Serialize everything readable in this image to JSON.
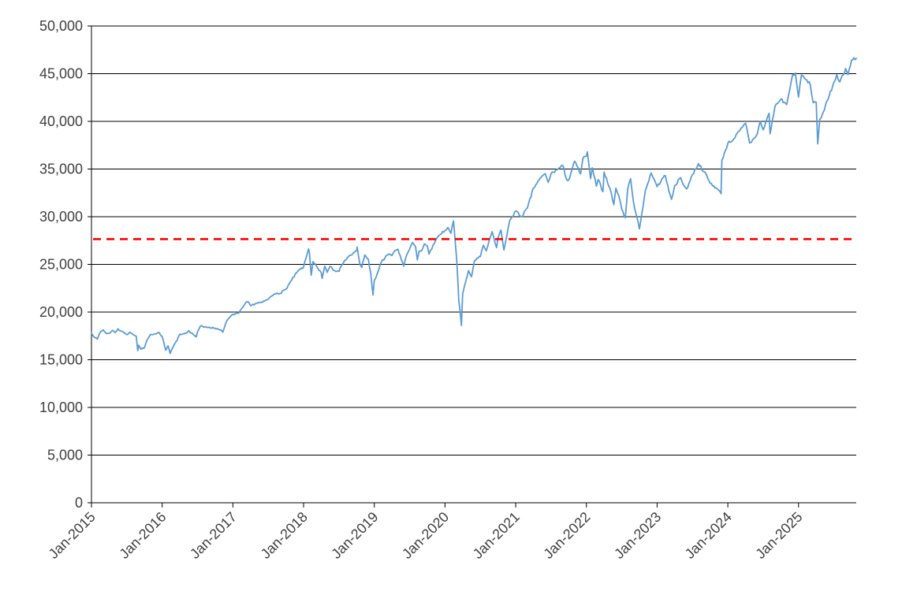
{
  "chart_data": {
    "type": "line",
    "title": "",
    "xlabel": "",
    "ylabel": "",
    "legend": "none",
    "grid": "horizontal",
    "x_unit": "months since Jan-2015",
    "x_range": [
      0,
      129.8
    ],
    "y_range": [
      0,
      50000
    ],
    "y_ticks": [
      {
        "v": 0,
        "label": "0"
      },
      {
        "v": 5000,
        "label": "5,000"
      },
      {
        "v": 10000,
        "label": "10,000"
      },
      {
        "v": 15000,
        "label": "15,000"
      },
      {
        "v": 20000,
        "label": "20,000"
      },
      {
        "v": 25000,
        "label": "25,000"
      },
      {
        "v": 30000,
        "label": "30,000"
      },
      {
        "v": 35000,
        "label": "35,000"
      },
      {
        "v": 40000,
        "label": "40,000"
      },
      {
        "v": 45000,
        "label": "45,000"
      },
      {
        "v": 50000,
        "label": "50,000"
      }
    ],
    "x_ticks": [
      {
        "t": 0,
        "label": "Jan-2015"
      },
      {
        "t": 12,
        "label": "Jan-2016"
      },
      {
        "t": 24,
        "label": "Jan-2017"
      },
      {
        "t": 36,
        "label": "Jan-2018"
      },
      {
        "t": 48,
        "label": "Jan-2019"
      },
      {
        "t": 60,
        "label": "Jan-2020"
      },
      {
        "t": 72,
        "label": "Jan-2021"
      },
      {
        "t": 84,
        "label": "Jan-2022"
      },
      {
        "t": 96,
        "label": "Jan-2023"
      },
      {
        "t": 108,
        "label": "Jan-2024"
      },
      {
        "t": 120,
        "label": "Jan-2025"
      }
    ],
    "reference_line": {
      "value": 27650,
      "color": "#FF0000",
      "style": "dashed"
    },
    "series": [
      {
        "name": "main-series",
        "color": "#5B9BD5",
        "points": [
          [
            0,
            17823
          ],
          [
            0.6,
            17300
          ],
          [
            1,
            17165
          ],
          [
            1.5,
            17900
          ],
          [
            2,
            18133
          ],
          [
            2.5,
            17750
          ],
          [
            3,
            17776
          ],
          [
            3.6,
            18080
          ],
          [
            4,
            17841
          ],
          [
            4.5,
            18250
          ],
          [
            5,
            18011
          ],
          [
            5.5,
            17850
          ],
          [
            6,
            17620
          ],
          [
            6.5,
            17900
          ],
          [
            7,
            17690
          ],
          [
            7.6,
            17450
          ],
          [
            7.85,
            15950
          ],
          [
            8,
            16528
          ],
          [
            8.4,
            16100
          ],
          [
            9,
            16285
          ],
          [
            9.5,
            17150
          ],
          [
            10,
            17664
          ],
          [
            11,
            17720
          ],
          [
            11.5,
            17850
          ],
          [
            12,
            17425
          ],
          [
            12.6,
            15988
          ],
          [
            13,
            16466
          ],
          [
            13.35,
            15660
          ],
          [
            14,
            16517
          ],
          [
            14.5,
            17000
          ],
          [
            15,
            17685
          ],
          [
            16,
            17774
          ],
          [
            16.5,
            18050
          ],
          [
            17,
            17787
          ],
          [
            17.8,
            17400
          ],
          [
            18,
            17930
          ],
          [
            18.5,
            18550
          ],
          [
            19,
            18432
          ],
          [
            20,
            18401
          ],
          [
            21,
            18308
          ],
          [
            22,
            18142
          ],
          [
            22.3,
            17888
          ],
          [
            23,
            19124
          ],
          [
            24,
            19763
          ],
          [
            25,
            19864
          ],
          [
            25.8,
            20600
          ],
          [
            26,
            20812
          ],
          [
            26.5,
            21100
          ],
          [
            27,
            20663
          ],
          [
            28,
            20941
          ],
          [
            29,
            21009
          ],
          [
            30,
            21350
          ],
          [
            31,
            21891
          ],
          [
            31.5,
            22000
          ],
          [
            32,
            21948
          ],
          [
            33,
            22405
          ],
          [
            34,
            23377
          ],
          [
            35,
            24272
          ],
          [
            36,
            24719
          ],
          [
            36.85,
            26616
          ],
          [
            37,
            26149
          ],
          [
            37.3,
            23860
          ],
          [
            37.6,
            25300
          ],
          [
            38,
            25029
          ],
          [
            38.4,
            24600
          ],
          [
            39,
            24103
          ],
          [
            39.15,
            23533
          ],
          [
            39.6,
            24800
          ],
          [
            40,
            24163
          ],
          [
            40.5,
            24800
          ],
          [
            41,
            24416
          ],
          [
            41.5,
            24250
          ],
          [
            42,
            24271
          ],
          [
            42.5,
            24920
          ],
          [
            43,
            25415
          ],
          [
            44,
            25965
          ],
          [
            45,
            26458
          ],
          [
            45.1,
            26828
          ],
          [
            45.55,
            25050
          ],
          [
            45.9,
            24688
          ],
          [
            46,
            25116
          ],
          [
            46.4,
            25990
          ],
          [
            47,
            25538
          ],
          [
            47.4,
            24100
          ],
          [
            47.78,
            21792
          ],
          [
            48,
            23327
          ],
          [
            48.5,
            24000
          ],
          [
            49,
            25000
          ],
          [
            50,
            25916
          ],
          [
            50.5,
            26100
          ],
          [
            51,
            25929
          ],
          [
            51.5,
            26450
          ],
          [
            52,
            26593
          ],
          [
            52.6,
            25470
          ],
          [
            53,
            24815
          ],
          [
            53.5,
            26000
          ],
          [
            54,
            26600
          ],
          [
            54.5,
            27300
          ],
          [
            55,
            26864
          ],
          [
            55.3,
            25479
          ],
          [
            55.6,
            26380
          ],
          [
            56,
            26403
          ],
          [
            56.5,
            27150
          ],
          [
            57,
            26917
          ],
          [
            57.3,
            26080
          ],
          [
            58,
            27046
          ],
          [
            59,
            28051
          ],
          [
            60,
            28538
          ],
          [
            60.5,
            28868
          ],
          [
            61,
            28256
          ],
          [
            61.45,
            29551
          ],
          [
            62,
            25409
          ],
          [
            62.35,
            21200
          ],
          [
            62.55,
            20188
          ],
          [
            62.78,
            18592
          ],
          [
            63,
            21917
          ],
          [
            63.3,
            22680
          ],
          [
            64,
            24346
          ],
          [
            64.5,
            23700
          ],
          [
            65,
            25383
          ],
          [
            66,
            25813
          ],
          [
            66.5,
            27000
          ],
          [
            67,
            26428
          ],
          [
            68,
            28430
          ],
          [
            68.75,
            26763
          ],
          [
            69,
            27782
          ],
          [
            69.5,
            28600
          ],
          [
            70,
            26502
          ],
          [
            70.5,
            28000
          ],
          [
            71,
            29639
          ],
          [
            72,
            30606
          ],
          [
            73,
            29983
          ],
          [
            74,
            30932
          ],
          [
            75,
            32982
          ],
          [
            76,
            33875
          ],
          [
            77,
            34529
          ],
          [
            77.5,
            33600
          ],
          [
            78,
            34503
          ],
          [
            79,
            34935
          ],
          [
            80,
            35361
          ],
          [
            80.6,
            33970
          ],
          [
            81,
            33844
          ],
          [
            82,
            35820
          ],
          [
            83,
            34484
          ],
          [
            83.4,
            36100
          ],
          [
            84,
            36338
          ],
          [
            84.15,
            36800
          ],
          [
            84.7,
            34000
          ],
          [
            85,
            35132
          ],
          [
            85.7,
            33200
          ],
          [
            86,
            33893
          ],
          [
            86.8,
            32632
          ],
          [
            87,
            34678
          ],
          [
            88,
            32977
          ],
          [
            88.65,
            31253
          ],
          [
            89,
            32990
          ],
          [
            89.5,
            32200
          ],
          [
            90,
            30775
          ],
          [
            90.6,
            29889
          ],
          [
            91,
            32845
          ],
          [
            91.5,
            33980
          ],
          [
            92,
            31510
          ],
          [
            93,
            28726
          ],
          [
            94,
            32733
          ],
          [
            95,
            34590
          ],
          [
            95.5,
            33900
          ],
          [
            96,
            33147
          ],
          [
            97,
            34086
          ],
          [
            97.4,
            34300
          ],
          [
            98,
            32657
          ],
          [
            98.45,
            31819
          ],
          [
            99,
            33274
          ],
          [
            100,
            34098
          ],
          [
            100.5,
            33300
          ],
          [
            101,
            32908
          ],
          [
            102,
            34408
          ],
          [
            103,
            35560
          ],
          [
            104,
            34722
          ],
          [
            105,
            33508
          ],
          [
            106,
            33053
          ],
          [
            106.85,
            32418
          ],
          [
            107,
            35951
          ],
          [
            108,
            37690
          ],
          [
            109,
            38150
          ],
          [
            110,
            38996
          ],
          [
            110.5,
            39400
          ],
          [
            111,
            39807
          ],
          [
            111.7,
            37735
          ],
          [
            112,
            37816
          ],
          [
            113,
            38686
          ],
          [
            113.5,
            40000
          ],
          [
            114,
            39119
          ],
          [
            115,
            40843
          ],
          [
            115.18,
            38703
          ],
          [
            116,
            41563
          ],
          [
            117,
            42330
          ],
          [
            118,
            41763
          ],
          [
            118.5,
            43300
          ],
          [
            119,
            44911
          ],
          [
            119.45,
            45074
          ],
          [
            120,
            42544
          ],
          [
            120.5,
            44850
          ],
          [
            121,
            44545
          ],
          [
            122,
            43841
          ],
          [
            122.5,
            41950
          ],
          [
            123,
            42002
          ],
          [
            123.25,
            37646
          ],
          [
            123.6,
            40200
          ],
          [
            124,
            40669
          ],
          [
            125,
            42270
          ],
          [
            126,
            44095
          ],
          [
            126.5,
            44900
          ],
          [
            127,
            44130
          ],
          [
            128,
            45545
          ],
          [
            128.4,
            44900
          ],
          [
            129,
            46398
          ],
          [
            129.8,
            46601
          ]
        ]
      }
    ]
  },
  "style": {
    "series_color": "#5B9BD5",
    "reference_color": "#FF0000",
    "grid_color": "#000000",
    "axis_color": "#000000",
    "label_color": "#404040",
    "background": "#FFFFFF"
  }
}
